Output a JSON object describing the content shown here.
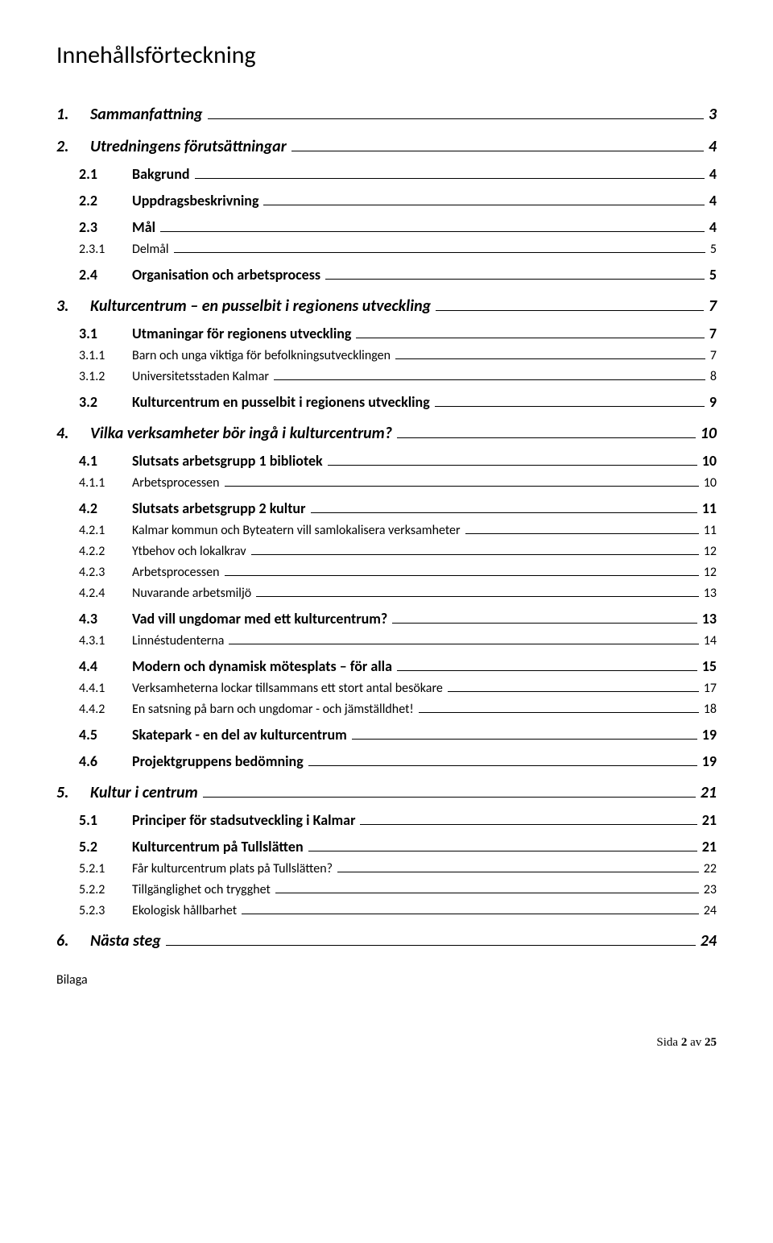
{
  "title": "Innehållsförteckning",
  "footer": {
    "prefix": "Sida ",
    "page": "2",
    "of": " av ",
    "total": "25"
  },
  "note": "Bilaga",
  "toc": [
    {
      "level": 1,
      "num": "1.",
      "label": "Sammanfattning",
      "page": "3"
    },
    {
      "level": 1,
      "num": "2.",
      "label": "Utredningens förutsättningar",
      "page": "4"
    },
    {
      "level": 2,
      "num": "2.1",
      "label": "Bakgrund",
      "page": "4"
    },
    {
      "level": 2,
      "num": "2.2",
      "label": "Uppdragsbeskrivning",
      "page": "4"
    },
    {
      "level": 2,
      "num": "2.3",
      "label": "Mål",
      "page": "4"
    },
    {
      "level": 3,
      "num": "2.3.1",
      "label": "Delmål",
      "page": "5"
    },
    {
      "level": 2,
      "num": "2.4",
      "label": "Organisation och arbetsprocess",
      "page": "5"
    },
    {
      "level": 1,
      "num": "3.",
      "label": "Kulturcentrum – en pusselbit i regionens utveckling",
      "page": "7"
    },
    {
      "level": 2,
      "num": "3.1",
      "label": "Utmaningar för regionens utveckling",
      "page": "7"
    },
    {
      "level": 3,
      "num": "3.1.1",
      "label": "Barn och unga viktiga för befolkningsutvecklingen",
      "page": "7"
    },
    {
      "level": 3,
      "num": "3.1.2",
      "label": "Universitetsstaden Kalmar",
      "page": "8"
    },
    {
      "level": 2,
      "num": "3.2",
      "label": "Kulturcentrum en pusselbit i regionens utveckling",
      "page": "9"
    },
    {
      "level": 1,
      "num": "4.",
      "label": "Vilka verksamheter bör ingå i kulturcentrum?",
      "page": "10"
    },
    {
      "level": 2,
      "num": "4.1",
      "label": "Slutsats arbetsgrupp 1 bibliotek",
      "page": "10"
    },
    {
      "level": 3,
      "num": "4.1.1",
      "label": "Arbetsprocessen",
      "page": "10"
    },
    {
      "level": 2,
      "num": "4.2",
      "label": "Slutsats arbetsgrupp 2 kultur",
      "page": "11"
    },
    {
      "level": 3,
      "num": "4.2.1",
      "label": "Kalmar kommun och Byteatern vill samlokalisera verksamheter",
      "page": "11"
    },
    {
      "level": 3,
      "num": "4.2.2",
      "label": "Ytbehov och lokalkrav",
      "page": "12"
    },
    {
      "level": 3,
      "num": "4.2.3",
      "label": "Arbetsprocessen",
      "page": "12"
    },
    {
      "level": 3,
      "num": "4.2.4",
      "label": "Nuvarande arbetsmiljö",
      "page": "13"
    },
    {
      "level": 2,
      "num": "4.3",
      "label": "Vad vill ungdomar med ett kulturcentrum?",
      "page": "13"
    },
    {
      "level": 3,
      "num": "4.3.1",
      "label": "Linnéstudenterna",
      "page": "14"
    },
    {
      "level": 2,
      "num": "4.4",
      "label": "Modern och dynamisk mötesplats – för alla",
      "page": "15"
    },
    {
      "level": 3,
      "num": "4.4.1",
      "label": "Verksamheterna lockar tillsammans ett stort antal besökare",
      "page": "17"
    },
    {
      "level": 3,
      "num": "4.4.2",
      "label": "En satsning på barn och ungdomar - och jämställdhet!",
      "page": "18"
    },
    {
      "level": 2,
      "num": "4.5",
      "label": "Skatepark - en del av kulturcentrum",
      "page": "19"
    },
    {
      "level": 2,
      "num": "4.6",
      "label": "Projektgruppens bedömning",
      "page": "19"
    },
    {
      "level": 1,
      "num": "5.",
      "label": "Kultur i centrum",
      "page": "21"
    },
    {
      "level": 2,
      "num": "5.1",
      "label": "Principer för stadsutveckling i Kalmar",
      "page": "21"
    },
    {
      "level": 2,
      "num": "5.2",
      "label": "Kulturcentrum på Tullslätten",
      "page": "21"
    },
    {
      "level": 3,
      "num": "5.2.1",
      "label": "Får kulturcentrum plats på Tullslätten?",
      "page": "22"
    },
    {
      "level": 3,
      "num": "5.2.2",
      "label": "Tillgänglighet och trygghet",
      "page": "23"
    },
    {
      "level": 3,
      "num": "5.2.3",
      "label": "Ekologisk hållbarhet",
      "page": "24"
    },
    {
      "level": 1,
      "num": "6.",
      "label": "Nästa steg",
      "page": "24"
    }
  ]
}
